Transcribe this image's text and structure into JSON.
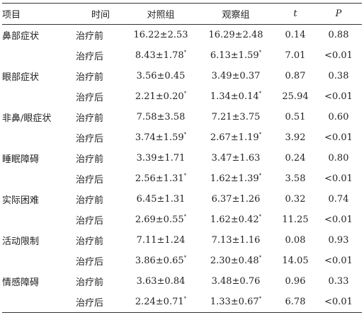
{
  "headers": {
    "item": "项目",
    "time": "时间",
    "control": "对照组",
    "observe": "观察组",
    "t": "t",
    "p": "P"
  },
  "mark": "*",
  "groups": [
    {
      "item": "鼻部症状",
      "rows": [
        {
          "time": "治疗前",
          "control": "16.22±2.53",
          "control_mark": false,
          "observe": "16.29±2.48",
          "observe_mark": false,
          "t": "0.14",
          "p": "0.88"
        },
        {
          "time": "治疗后",
          "control": "8.43±1.78",
          "control_mark": true,
          "observe": "6.13±1.59",
          "observe_mark": true,
          "t": "7.01",
          "p": "<0.01"
        }
      ]
    },
    {
      "item": "眼部症状",
      "rows": [
        {
          "time": "治疗前",
          "control": "3.56±0.45",
          "control_mark": false,
          "observe": "3.49±0.37",
          "observe_mark": false,
          "t": "0.87",
          "p": "0.38"
        },
        {
          "time": "治疗后",
          "control": "2.21±0.20",
          "control_mark": true,
          "observe": "1.34±0.14",
          "observe_mark": true,
          "t": "25.94",
          "p": "<0.01"
        }
      ]
    },
    {
      "item": "非鼻/眼症状",
      "rows": [
        {
          "time": "治疗前",
          "control": "7.58±3.58",
          "control_mark": false,
          "observe": "7.21±3.75",
          "observe_mark": false,
          "t": "0.51",
          "p": "0.60"
        },
        {
          "time": "治疗后",
          "control": "3.74±1.59",
          "control_mark": true,
          "observe": "2.67±1.19",
          "observe_mark": true,
          "t": "3.92",
          "p": "<0.01"
        }
      ]
    },
    {
      "item": "睡眠障碍",
      "rows": [
        {
          "time": "治疗前",
          "control": "3.39±1.71",
          "control_mark": false,
          "observe": "3.47±1.63",
          "observe_mark": false,
          "t": "0.24",
          "p": "0.80"
        },
        {
          "time": "治疗后",
          "control": "2.56±1.31",
          "control_mark": true,
          "observe": "1.62±1.39",
          "observe_mark": true,
          "t": "3.58",
          "p": "<0.01"
        }
      ]
    },
    {
      "item": "实际困难",
      "rows": [
        {
          "time": "治疗前",
          "control": "6.45±1.31",
          "control_mark": false,
          "observe": "6.37±1.26",
          "observe_mark": false,
          "t": "0.32",
          "p": "0.74"
        },
        {
          "time": "治疗后",
          "control": "2.69±0.55",
          "control_mark": true,
          "observe": "1.62±0.42",
          "observe_mark": true,
          "t": "11.25",
          "p": "<0.01"
        }
      ]
    },
    {
      "item": "活动限制",
      "rows": [
        {
          "time": "治疗前",
          "control": "7.11±1.24",
          "control_mark": false,
          "observe": "7.13±1.16",
          "observe_mark": false,
          "t": "0.08",
          "p": "0.93"
        },
        {
          "time": "治疗后",
          "control": "3.86±0.65",
          "control_mark": true,
          "observe": "2.30±0.48",
          "observe_mark": true,
          "t": "14.05",
          "p": "<0.01"
        }
      ]
    },
    {
      "item": "情感障碍",
      "rows": [
        {
          "time": "治疗前",
          "control": "3.63±0.84",
          "control_mark": false,
          "observe": "3.48±0.76",
          "observe_mark": false,
          "t": "0.96",
          "p": "0.33"
        },
        {
          "time": "治疗后",
          "control": "2.24±0.71",
          "control_mark": true,
          "observe": "1.33±0.67",
          "observe_mark": true,
          "t": "6.78",
          "p": "<0.01"
        }
      ]
    }
  ]
}
